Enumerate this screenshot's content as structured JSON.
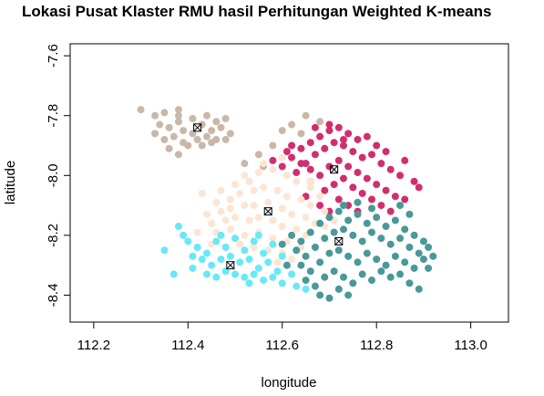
{
  "chart_data": {
    "type": "scatter",
    "title": "Lokasi Pusat Klaster RMU hasil Perhitungan Weighted K-means",
    "xlabel": "longitude",
    "ylabel": "latitude",
    "xlim": [
      112.15,
      113.08
    ],
    "ylim": [
      -8.49,
      -7.56
    ],
    "xticks": [
      {
        "value": 112.2,
        "label": "112.2"
      },
      {
        "value": 112.4,
        "label": "112.4"
      },
      {
        "value": 112.6,
        "label": "112.6"
      },
      {
        "value": 112.8,
        "label": "112.8"
      },
      {
        "value": 113.0,
        "label": "113.0"
      }
    ],
    "yticks": [
      {
        "value": -7.6,
        "label": "-7.6"
      },
      {
        "value": -7.8,
        "label": "-7.8"
      },
      {
        "value": -8.0,
        "label": "-8.0"
      },
      {
        "value": -8.2,
        "label": "-8.2"
      },
      {
        "value": -8.4,
        "label": "-8.4"
      }
    ],
    "grid": false,
    "legend": "none",
    "series": [
      {
        "color": "#c9b7a8",
        "center": [
          112.42,
          -7.84
        ],
        "points": [
          [
            112.3,
            -7.78
          ],
          [
            112.33,
            -7.8
          ],
          [
            112.35,
            -7.79
          ],
          [
            112.38,
            -7.8
          ],
          [
            112.41,
            -7.81
          ],
          [
            112.44,
            -7.8
          ],
          [
            112.46,
            -7.82
          ],
          [
            112.48,
            -7.81
          ],
          [
            112.34,
            -7.83
          ],
          [
            112.36,
            -7.84
          ],
          [
            112.38,
            -7.82
          ],
          [
            112.39,
            -7.85
          ],
          [
            112.41,
            -7.86
          ],
          [
            112.43,
            -7.83
          ],
          [
            112.45,
            -7.85
          ],
          [
            112.47,
            -7.84
          ],
          [
            112.49,
            -7.86
          ],
          [
            112.33,
            -7.86
          ],
          [
            112.35,
            -7.88
          ],
          [
            112.37,
            -7.87
          ],
          [
            112.39,
            -7.89
          ],
          [
            112.42,
            -7.88
          ],
          [
            112.44,
            -7.87
          ],
          [
            112.46,
            -7.88
          ],
          [
            112.36,
            -7.91
          ],
          [
            112.38,
            -7.93
          ],
          [
            112.4,
            -7.9
          ],
          [
            112.43,
            -7.9
          ],
          [
            112.45,
            -7.89
          ],
          [
            112.48,
            -7.88
          ],
          [
            112.52,
            -7.96
          ],
          [
            112.55,
            -7.93
          ],
          [
            112.58,
            -7.9
          ],
          [
            112.6,
            -7.85
          ],
          [
            112.62,
            -7.83
          ],
          [
            112.65,
            -7.8
          ],
          [
            112.68,
            -7.82
          ],
          [
            112.56,
            -7.97
          ],
          [
            112.64,
            -7.86
          ],
          [
            112.38,
            -7.78
          ]
        ]
      },
      {
        "color": "#d12e6f",
        "center": [
          112.71,
          -7.98
        ],
        "points": [
          [
            112.6,
            -7.97
          ],
          [
            112.62,
            -7.94
          ],
          [
            112.64,
            -7.91
          ],
          [
            112.66,
            -7.89
          ],
          [
            112.68,
            -7.87
          ],
          [
            112.7,
            -7.85
          ],
          [
            112.72,
            -7.84
          ],
          [
            112.74,
            -7.86
          ],
          [
            112.76,
            -7.88
          ],
          [
            112.78,
            -7.87
          ],
          [
            112.8,
            -7.9
          ],
          [
            112.82,
            -7.92
          ],
          [
            112.63,
            -7.99
          ],
          [
            112.65,
            -7.96
          ],
          [
            112.67,
            -7.93
          ],
          [
            112.69,
            -7.91
          ],
          [
            112.71,
            -7.89
          ],
          [
            112.73,
            -7.9
          ],
          [
            112.75,
            -7.92
          ],
          [
            112.77,
            -7.94
          ],
          [
            112.79,
            -7.93
          ],
          [
            112.81,
            -7.96
          ],
          [
            112.83,
            -7.98
          ],
          [
            112.85,
            -8.0
          ],
          [
            112.66,
            -8.02
          ],
          [
            112.68,
            -8.0
          ],
          [
            112.7,
            -7.97
          ],
          [
            112.72,
            -7.95
          ],
          [
            112.74,
            -7.97
          ],
          [
            112.76,
            -7.99
          ],
          [
            112.78,
            -8.01
          ],
          [
            112.8,
            -8.03
          ],
          [
            112.82,
            -8.05
          ],
          [
            112.84,
            -8.07
          ],
          [
            112.69,
            -8.05
          ],
          [
            112.71,
            -8.03
          ],
          [
            112.73,
            -8.01
          ],
          [
            112.75,
            -8.04
          ],
          [
            112.77,
            -8.06
          ],
          [
            112.79,
            -8.08
          ],
          [
            112.81,
            -8.1
          ],
          [
            112.72,
            -8.08
          ],
          [
            112.74,
            -8.1
          ],
          [
            112.76,
            -8.12
          ],
          [
            112.68,
            -8.1
          ],
          [
            112.7,
            -8.12
          ],
          [
            112.66,
            -7.98
          ],
          [
            112.86,
            -7.95
          ],
          [
            112.88,
            -8.02
          ],
          [
            112.89,
            -8.04
          ],
          [
            112.64,
            -7.96
          ],
          [
            112.62,
            -7.9
          ],
          [
            112.67,
            -7.84
          ],
          [
            112.7,
            -7.83
          ],
          [
            112.73,
            -7.88
          ],
          [
            112.58,
            -7.95
          ],
          [
            112.61,
            -7.92
          ],
          [
            112.86,
            -8.08
          ],
          [
            112.83,
            -8.12
          ],
          [
            112.65,
            -8.07
          ]
        ]
      },
      {
        "color": "#fce5d3",
        "center": [
          112.57,
          -8.12
        ],
        "points": [
          [
            112.47,
            -8.05
          ],
          [
            112.5,
            -8.03
          ],
          [
            112.52,
            -8.0
          ],
          [
            112.55,
            -7.99
          ],
          [
            112.58,
            -7.98
          ],
          [
            112.61,
            -8.0
          ],
          [
            112.63,
            -8.02
          ],
          [
            112.66,
            -8.04
          ],
          [
            112.68,
            -8.07
          ],
          [
            112.46,
            -8.09
          ],
          [
            112.49,
            -8.08
          ],
          [
            112.51,
            -8.06
          ],
          [
            112.54,
            -8.05
          ],
          [
            112.56,
            -8.04
          ],
          [
            112.59,
            -8.05
          ],
          [
            112.61,
            -8.07
          ],
          [
            112.64,
            -8.08
          ],
          [
            112.66,
            -8.1
          ],
          [
            112.69,
            -8.12
          ],
          [
            112.44,
            -8.13
          ],
          [
            112.47,
            -8.12
          ],
          [
            112.49,
            -8.11
          ],
          [
            112.52,
            -8.1
          ],
          [
            112.54,
            -8.1
          ],
          [
            112.57,
            -8.09
          ],
          [
            112.6,
            -8.11
          ],
          [
            112.62,
            -8.13
          ],
          [
            112.65,
            -8.14
          ],
          [
            112.67,
            -8.16
          ],
          [
            112.45,
            -8.16
          ],
          [
            112.48,
            -8.15
          ],
          [
            112.5,
            -8.14
          ],
          [
            112.53,
            -8.15
          ],
          [
            112.55,
            -8.14
          ],
          [
            112.58,
            -8.15
          ],
          [
            112.6,
            -8.17
          ],
          [
            112.63,
            -8.18
          ],
          [
            112.65,
            -8.2
          ],
          [
            112.42,
            -8.19
          ],
          [
            112.46,
            -8.19
          ],
          [
            112.49,
            -8.18
          ],
          [
            112.52,
            -8.2
          ],
          [
            112.55,
            -8.19
          ],
          [
            112.58,
            -8.21
          ],
          [
            112.61,
            -8.22
          ],
          [
            112.64,
            -8.24
          ],
          [
            112.51,
            -8.23
          ],
          [
            112.54,
            -8.24
          ],
          [
            112.57,
            -8.25
          ],
          [
            112.6,
            -8.26
          ],
          [
            112.56,
            -7.96
          ],
          [
            112.6,
            -7.94
          ],
          [
            112.53,
            -8.02
          ],
          [
            112.69,
            -8.17
          ],
          [
            112.71,
            -8.15
          ],
          [
            112.43,
            -8.06
          ],
          [
            112.45,
            -8.23
          ],
          [
            112.62,
            -8.28
          ],
          [
            112.66,
            -8.02
          ],
          [
            112.59,
            -8.29
          ]
        ]
      },
      {
        "color": "#69e8f7",
        "center": [
          112.49,
          -8.3
        ],
        "points": [
          [
            112.38,
            -8.17
          ],
          [
            112.4,
            -8.22
          ],
          [
            112.42,
            -8.24
          ],
          [
            112.44,
            -8.26
          ],
          [
            112.46,
            -8.22
          ],
          [
            112.48,
            -8.24
          ],
          [
            112.5,
            -8.21
          ],
          [
            112.52,
            -8.25
          ],
          [
            112.54,
            -8.22
          ],
          [
            112.56,
            -8.26
          ],
          [
            112.58,
            -8.23
          ],
          [
            112.6,
            -8.27
          ],
          [
            112.43,
            -8.28
          ],
          [
            112.45,
            -8.3
          ],
          [
            112.47,
            -8.28
          ],
          [
            112.49,
            -8.27
          ],
          [
            112.51,
            -8.29
          ],
          [
            112.53,
            -8.28
          ],
          [
            112.55,
            -8.31
          ],
          [
            112.57,
            -8.29
          ],
          [
            112.59,
            -8.32
          ],
          [
            112.61,
            -8.3
          ],
          [
            112.41,
            -8.31
          ],
          [
            112.44,
            -8.33
          ],
          [
            112.46,
            -8.34
          ],
          [
            112.48,
            -8.32
          ],
          [
            112.5,
            -8.33
          ],
          [
            112.52,
            -8.34
          ],
          [
            112.54,
            -8.33
          ],
          [
            112.56,
            -8.35
          ],
          [
            112.58,
            -8.34
          ],
          [
            112.6,
            -8.36
          ],
          [
            112.62,
            -8.33
          ],
          [
            112.37,
            -8.33
          ],
          [
            112.41,
            -8.27
          ],
          [
            112.39,
            -8.2
          ],
          [
            112.47,
            -8.2
          ],
          [
            112.53,
            -8.36
          ],
          [
            112.63,
            -8.37
          ],
          [
            112.65,
            -8.38
          ],
          [
            112.55,
            -8.2
          ],
          [
            112.35,
            -8.25
          ]
        ]
      },
      {
        "color": "#4a9898",
        "center": [
          112.72,
          -8.22
        ],
        "points": [
          [
            112.62,
            -8.2
          ],
          [
            112.64,
            -8.22
          ],
          [
            112.66,
            -8.19
          ],
          [
            112.68,
            -8.16
          ],
          [
            112.7,
            -8.14
          ],
          [
            112.72,
            -8.12
          ],
          [
            112.74,
            -8.15
          ],
          [
            112.76,
            -8.13
          ],
          [
            112.78,
            -8.16
          ],
          [
            112.8,
            -8.14
          ],
          [
            112.82,
            -8.17
          ],
          [
            112.84,
            -8.15
          ],
          [
            112.86,
            -8.18
          ],
          [
            112.88,
            -8.2
          ],
          [
            112.9,
            -8.22
          ],
          [
            112.63,
            -8.25
          ],
          [
            112.65,
            -8.27
          ],
          [
            112.67,
            -8.24
          ],
          [
            112.69,
            -8.21
          ],
          [
            112.71,
            -8.19
          ],
          [
            112.73,
            -8.18
          ],
          [
            112.75,
            -8.2
          ],
          [
            112.77,
            -8.22
          ],
          [
            112.79,
            -8.19
          ],
          [
            112.81,
            -8.21
          ],
          [
            112.83,
            -8.23
          ],
          [
            112.85,
            -8.21
          ],
          [
            112.87,
            -8.24
          ],
          [
            112.89,
            -8.26
          ],
          [
            112.64,
            -8.3
          ],
          [
            112.66,
            -8.32
          ],
          [
            112.68,
            -8.29
          ],
          [
            112.7,
            -8.26
          ],
          [
            112.72,
            -8.25
          ],
          [
            112.74,
            -8.27
          ],
          [
            112.76,
            -8.29
          ],
          [
            112.78,
            -8.26
          ],
          [
            112.8,
            -8.28
          ],
          [
            112.82,
            -8.3
          ],
          [
            112.84,
            -8.27
          ],
          [
            112.86,
            -8.29
          ],
          [
            112.88,
            -8.31
          ],
          [
            112.9,
            -8.28
          ],
          [
            112.65,
            -8.35
          ],
          [
            112.67,
            -8.37
          ],
          [
            112.69,
            -8.34
          ],
          [
            112.71,
            -8.32
          ],
          [
            112.73,
            -8.34
          ],
          [
            112.75,
            -8.36
          ],
          [
            112.77,
            -8.33
          ],
          [
            112.79,
            -8.35
          ],
          [
            112.81,
            -8.32
          ],
          [
            112.83,
            -8.34
          ],
          [
            112.85,
            -8.33
          ],
          [
            112.87,
            -8.36
          ],
          [
            112.89,
            -8.38
          ],
          [
            112.68,
            -8.4
          ],
          [
            112.7,
            -8.41
          ],
          [
            112.72,
            -8.38
          ],
          [
            112.74,
            -8.4
          ],
          [
            112.6,
            -8.23
          ],
          [
            112.61,
            -8.3
          ],
          [
            112.91,
            -8.24
          ],
          [
            112.92,
            -8.27
          ],
          [
            112.85,
            -8.1
          ],
          [
            112.87,
            -8.13
          ],
          [
            112.76,
            -8.09
          ],
          [
            112.79,
            -8.11
          ],
          [
            112.91,
            -8.31
          ],
          [
            112.73,
            -8.1
          ]
        ]
      }
    ]
  }
}
